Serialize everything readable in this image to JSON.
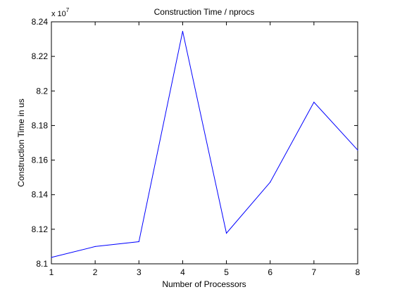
{
  "chart_data": {
    "type": "line",
    "title": "Construction Time / nprocs",
    "xlabel": "Number of Processors",
    "ylabel": "Construction Time in us",
    "exponent_label": "x 10",
    "exponent_power": "7",
    "x": [
      1,
      2,
      3,
      4,
      5,
      6,
      7,
      8
    ],
    "series": [
      {
        "values": [
          8.1037,
          8.11,
          8.1128,
          8.2345,
          8.1177,
          8.1472,
          8.1935,
          8.1658
        ],
        "color": "#0000ff"
      }
    ],
    "xlim": [
      1,
      8
    ],
    "ylim": [
      8.1,
      8.24
    ],
    "x_ticks": [
      1,
      2,
      3,
      4,
      5,
      6,
      7,
      8
    ],
    "x_tick_labels": [
      "1",
      "2",
      "3",
      "4",
      "5",
      "6",
      "7",
      "8"
    ],
    "y_ticks": [
      8.1,
      8.12,
      8.14,
      8.16,
      8.18,
      8.2,
      8.22,
      8.24
    ],
    "y_tick_labels": [
      "8.1",
      "8.12",
      "8.14",
      "8.16",
      "8.18",
      "8.2",
      "8.22",
      "8.24"
    ],
    "grid": false,
    "legend": false,
    "axes_color": "#000000",
    "background": "#ffffff"
  }
}
